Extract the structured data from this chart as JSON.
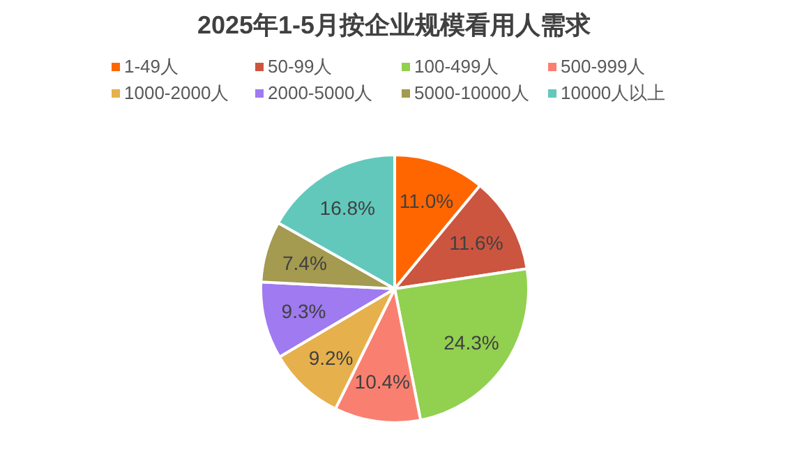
{
  "chart_data": {
    "type": "pie",
    "title": "2025年1-5月按企业规模看用人需求",
    "categories": [
      "1-49人",
      "50-99人",
      "100-499人",
      "500-999人",
      "1000-2000人",
      "2000-5000人",
      "5000-10000人",
      "10000人以上"
    ],
    "values": [
      11.0,
      11.6,
      24.3,
      10.4,
      9.2,
      9.3,
      7.4,
      16.8
    ],
    "value_labels": [
      "11.0%",
      "11.6%",
      "24.3%",
      "10.4%",
      "9.2%",
      "9.3%",
      "7.4%",
      "16.8%"
    ],
    "colors": [
      "#ff6600",
      "#cc5540",
      "#92d050",
      "#f98070",
      "#e6b04c",
      "#9f7af0",
      "#a49a50",
      "#62c8bc"
    ],
    "legend": "top"
  }
}
